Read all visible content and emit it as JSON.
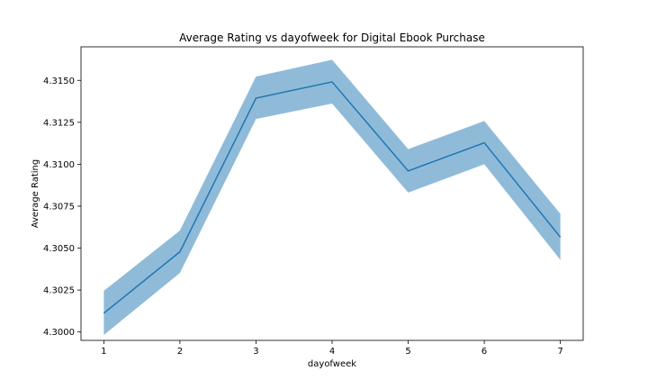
{
  "chart_data": {
    "type": "line",
    "title": "Average Rating vs dayofweek for Digital Ebook Purchase",
    "xlabel": "dayofweek",
    "ylabel": "Average Rating",
    "x": [
      1,
      2,
      3,
      4,
      5,
      6,
      7
    ],
    "series": [
      {
        "values": [
          4.30112,
          4.30478,
          4.31394,
          4.31491,
          4.3096,
          4.31128,
          4.30565
        ],
        "lower": [
          4.29982,
          4.30352,
          4.3127,
          4.31362,
          4.30831,
          4.31,
          4.3043
        ],
        "upper": [
          4.30245,
          4.30605,
          4.31523,
          4.31623,
          4.3109,
          4.31258,
          4.30704
        ],
        "color": "#1f77b4",
        "band_color": "#1f77b4"
      }
    ],
    "xticks": [
      "1",
      "2",
      "3",
      "4",
      "5",
      "6",
      "7"
    ],
    "yticks": [
      "4.3000",
      "4.3025",
      "4.3050",
      "4.3075",
      "4.3100",
      "4.3125",
      "4.3150"
    ],
    "xlim": [
      0.7,
      7.3
    ],
    "ylim": [
      4.2995,
      4.317
    ],
    "grid": false,
    "legend": "none"
  }
}
